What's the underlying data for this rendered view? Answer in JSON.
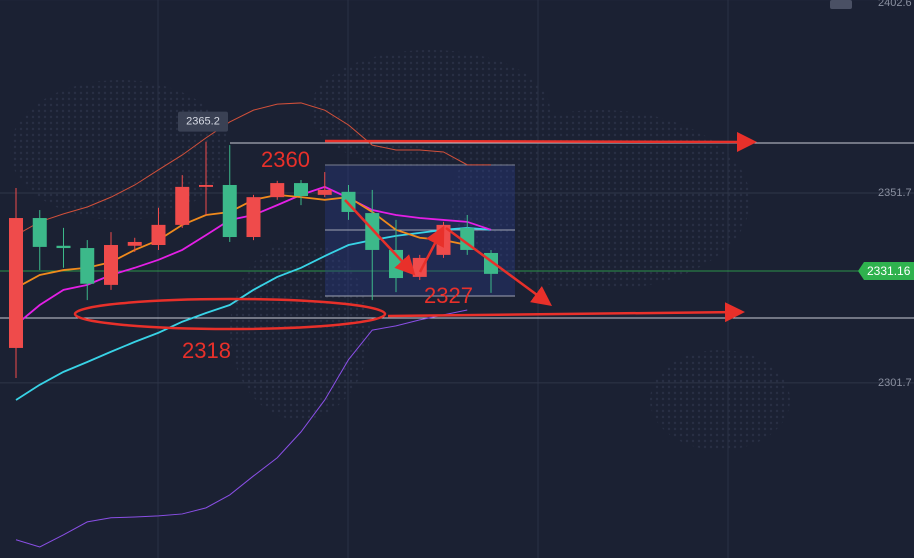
{
  "chart_data": {
    "type": "candlestick",
    "categories": [
      null,
      null,
      null,
      null,
      null,
      null,
      null,
      null,
      null,
      null,
      null,
      null,
      null,
      null,
      null,
      null,
      null,
      null,
      null,
      null,
      null
    ],
    "open": [
      2310.9,
      2345.1,
      2337.8,
      2337.2,
      2327.5,
      2337.8,
      2338.0,
      2343.3,
      2353.3,
      2353.8,
      2340.1,
      2350.6,
      2354.3,
      2351.2,
      2352.0,
      2346.4,
      2336.7,
      2329.6,
      2335.4,
      2342.5,
      2335.9
    ],
    "high": [
      2353.0,
      2347.2,
      2342.5,
      2339.3,
      2341.4,
      2339.9,
      2347.8,
      2356.4,
      2365.2,
      2364.3,
      2351.2,
      2354.9,
      2355.1,
      2357.2,
      2353.8,
      2352.5,
      2344.6,
      2335.4,
      2344.1,
      2345.9,
      2336.7
    ],
    "low": [
      2303.0,
      2331.4,
      2332.0,
      2323.5,
      2326.2,
      2336.2,
      2336.7,
      2342.5,
      2345.9,
      2338.8,
      2339.3,
      2349.9,
      2348.5,
      2350.6,
      2344.6,
      2323.5,
      2325.6,
      2328.8,
      2334.6,
      2335.4,
      2325.4
    ],
    "close": [
      2345.1,
      2337.5,
      2337.2,
      2327.8,
      2338.0,
      2338.8,
      2343.3,
      2353.3,
      2353.8,
      2340.1,
      2350.6,
      2354.3,
      2350.9,
      2352.5,
      2346.7,
      2336.7,
      2329.3,
      2334.6,
      2343.3,
      2336.7,
      2330.4
    ],
    "up_color": "#ef4b4b",
    "down_color": "#3cb98a",
    "series": [
      {
        "color": "#d2503a",
        "values": [
          2340.6,
          2344.1,
          2346.2,
          2348.0,
          2350.6,
          2353.8,
          2357.8,
          2361.7,
          2366.2,
          2370.4,
          2373.5,
          2375.1,
          2375.4,
          2373.5,
          2369.6,
          2364.3,
          2363.0,
          2363.0,
          2362.5,
          2359.1,
          2359.1
        ]
      },
      {
        "color": "#8a4fe6",
        "values": [
          2260.4,
          2258.5,
          2261.7,
          2265.1,
          2266.2,
          2266.4,
          2266.7,
          2267.2,
          2268.8,
          2272.2,
          2277.2,
          2282.0,
          2288.8,
          2297.2,
          2307.8,
          2315.6,
          2316.7,
          2318.3,
          2319.6,
          2320.9,
          null
        ]
      },
      {
        "color": "#38d3e6",
        "values": [
          2297.2,
          2301.2,
          2304.6,
          2307.2,
          2309.9,
          2312.5,
          2314.9,
          2317.8,
          2320.1,
          2322.2,
          2326.2,
          2329.6,
          2332.0,
          2335.1,
          2338.0,
          2339.3,
          2340.4,
          2341.2,
          2342.0,
          2342.5,
          2342.0
        ]
      },
      {
        "color": "#e41fe6",
        "values": [
          2317.0,
          2322.2,
          2326.2,
          2327.5,
          2330.1,
          2332.0,
          2334.1,
          2336.7,
          2340.6,
          2344.6,
          2345.9,
          2348.5,
          2351.2,
          2353.3,
          2350.4,
          2347.2,
          2345.9,
          2345.1,
          2344.6,
          2344.1,
          2342.0
        ]
      },
      {
        "color": "#f08a1c",
        "values": [
          2326.7,
          2330.1,
          2331.4,
          2332.0,
          2333.5,
          2336.7,
          2339.3,
          2343.3,
          2345.9,
          2346.7,
          2349.9,
          2351.2,
          2350.6,
          2349.9,
          2350.6,
          2346.7,
          2342.0,
          2339.9,
          2339.3,
          2338.0,
          null
        ]
      }
    ],
    "ylim": [
      2255.6,
      2402.5
    ],
    "yticks": [
      2402.6,
      2351.7,
      2301.7
    ],
    "last_price": 2331.16,
    "last_price_color": "#2fb24e",
    "annotations": [
      "2365.2",
      "2360",
      "2327",
      "2318"
    ],
    "grid": true
  }
}
